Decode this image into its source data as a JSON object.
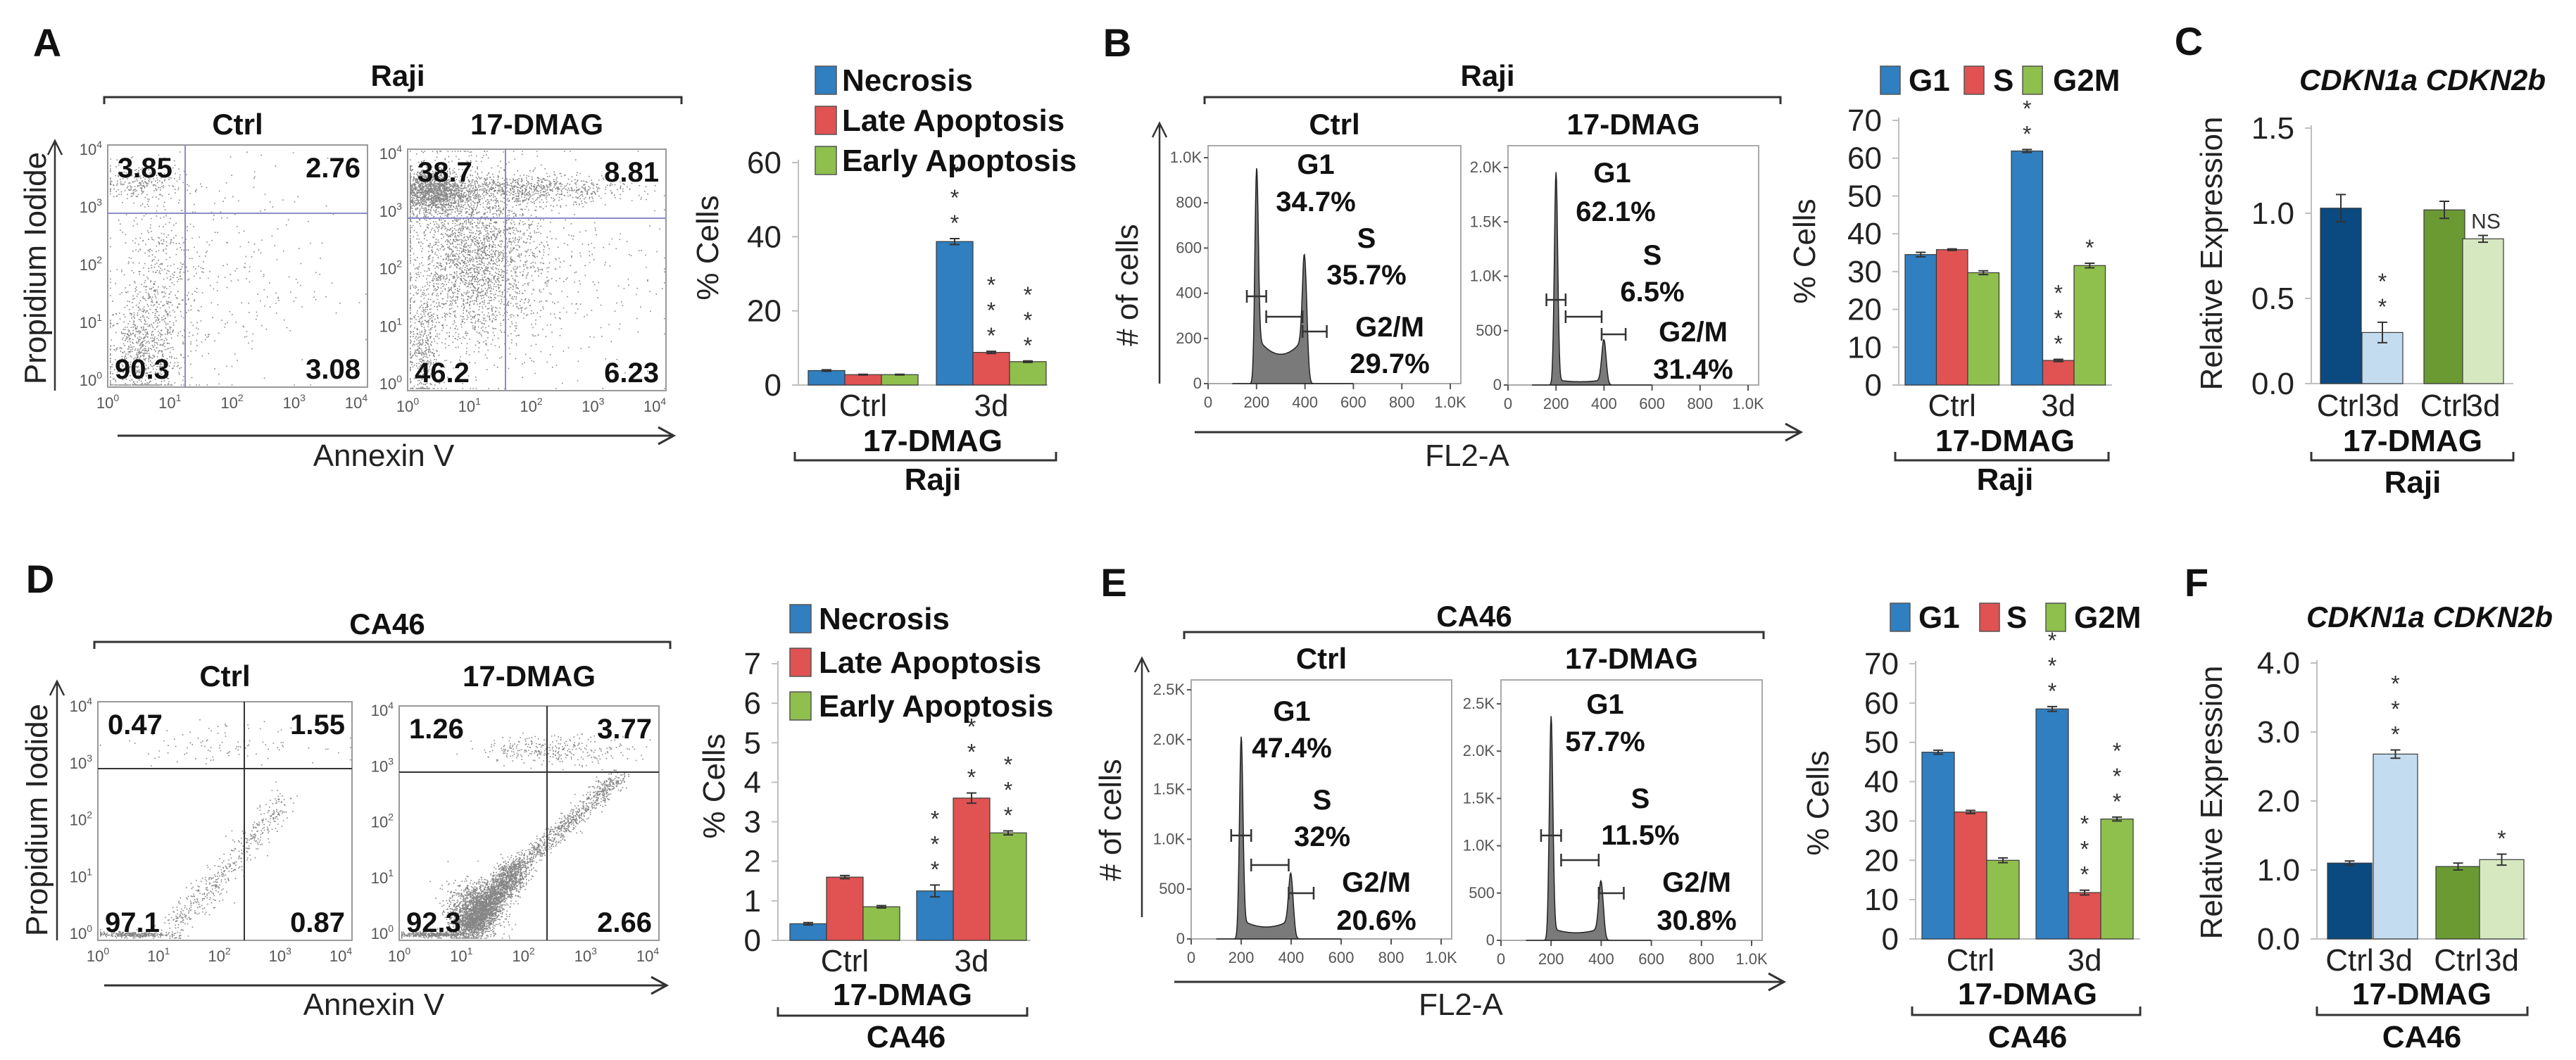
{
  "chart_data": [
    {
      "panel": "A",
      "type": "scatter",
      "title": "Raji",
      "xlabel": "Annexin V",
      "ylabel": "Propidium Iodide",
      "tick_base": "10",
      "tick_exponents": [
        "0",
        "1",
        "2",
        "3",
        "4"
      ],
      "subplots": [
        {
          "title": "Ctrl",
          "quadrants": {
            "upper_left": "3.85",
            "upper_right": "2.76",
            "lower_left": "90.3",
            "lower_right": "3.08"
          }
        },
        {
          "title": "17-DMAG",
          "quadrants": {
            "upper_left": "38.7",
            "upper_right": "8.81",
            "lower_left": "46.2",
            "lower_right": "6.23"
          }
        }
      ]
    },
    {
      "panel": "A-bar",
      "type": "bar",
      "categories": [
        "Ctrl",
        "3d"
      ],
      "group_label": "17-DMAG",
      "cell_line": "Raji",
      "ylabel": "% Cells",
      "ylim": [
        0,
        60
      ],
      "yticks": [
        "0",
        "20",
        "40",
        "60"
      ],
      "series": [
        {
          "name": "Necrosis",
          "color": "#2f7fc1",
          "values": [
            3.9,
            38.7
          ],
          "errors": [
            0.2,
            0.8
          ],
          "significance": [
            "",
            "***"
          ]
        },
        {
          "name": "Late Apoptosis",
          "color": "#e15252",
          "values": [
            2.8,
            8.8
          ],
          "errors": [
            0.1,
            0.3
          ],
          "significance": [
            "",
            "***"
          ]
        },
        {
          "name": "Early Apoptosis",
          "color": "#8fbf4d",
          "values": [
            2.8,
            6.3
          ],
          "errors": [
            0.1,
            0.2
          ],
          "significance": [
            "",
            "***"
          ]
        }
      ]
    },
    {
      "panel": "B",
      "type": "area",
      "title": "Raji",
      "xlabel": "FL2-A",
      "ylabel": "# of cells",
      "x_ticks": [
        {
          "value": 0,
          "label": "0"
        },
        {
          "value": 200,
          "label": "200"
        },
        {
          "value": 400,
          "label": "400"
        },
        {
          "value": 600,
          "label": "600"
        },
        {
          "value": 800,
          "label": "800"
        },
        {
          "value": 1000,
          "label": "1.0K"
        }
      ],
      "subplots": [
        {
          "title": "Ctrl",
          "y_ticks": [
            {
              "value": 0,
              "label": "0"
            },
            {
              "value": 200,
              "label": "200"
            },
            {
              "value": 400,
              "label": "400"
            },
            {
              "value": 600,
              "label": "600"
            },
            {
              "value": 800,
              "label": "800"
            },
            {
              "value": 1000,
              "label": "1.0K"
            }
          ],
          "g1_peak_count": 920,
          "s_phase_count": 130,
          "g2_peak_count": 480,
          "phases": [
            {
              "name": "G1",
              "percent": "34.7%"
            },
            {
              "name": "S",
              "percent": "35.7%"
            },
            {
              "name": "G2/M",
              "percent": "29.7%"
            }
          ]
        },
        {
          "title": "17-DMAG",
          "y_ticks": [
            {
              "value": 0,
              "label": "0"
            },
            {
              "value": 500,
              "label": "500"
            },
            {
              "value": 1000,
              "label": "1.0K"
            },
            {
              "value": 1500,
              "label": "1.5K"
            },
            {
              "value": 2000,
              "label": "2.0K"
            }
          ],
          "g1_peak_count": 1950,
          "s_phase_count": 30,
          "g2_peak_count": 400,
          "phases": [
            {
              "name": "G1",
              "percent": "62.1%"
            },
            {
              "name": "S",
              "percent": "6.5%"
            },
            {
              "name": "G2/M",
              "percent": "31.4%"
            }
          ]
        }
      ]
    },
    {
      "panel": "B-bar",
      "type": "bar",
      "categories": [
        "Ctrl",
        "3d"
      ],
      "group_label": "17-DMAG",
      "cell_line": "Raji",
      "ylabel": "% Cells",
      "ylim": [
        0,
        70
      ],
      "yticks": [
        "0",
        "10",
        "20",
        "30",
        "40",
        "50",
        "60",
        "70"
      ],
      "series": [
        {
          "name": "G1",
          "color": "#2f7fc1",
          "values": [
            34.5,
            61.9
          ],
          "errors": [
            0.6,
            0.4
          ],
          "significance": [
            "",
            "***"
          ]
        },
        {
          "name": "S",
          "color": "#e15252",
          "values": [
            35.8,
            6.5
          ],
          "errors": [
            0.2,
            0.3
          ],
          "significance": [
            "",
            "***"
          ]
        },
        {
          "name": "G2M",
          "color": "#8fbf4d",
          "values": [
            29.7,
            31.6
          ],
          "errors": [
            0.5,
            0.6
          ],
          "significance": [
            "",
            "*"
          ]
        }
      ]
    },
    {
      "panel": "C",
      "type": "bar",
      "title": "CDKN1a CDKN2b",
      "categories": [
        "Ctrl",
        "3d",
        "Ctrl",
        "3d"
      ],
      "values": [
        1.03,
        0.3,
        1.02,
        0.85
      ],
      "errors": [
        0.08,
        0.06,
        0.05,
        0.02
      ],
      "colors": [
        "#0b4a80",
        "#c4dcf0",
        "#6b9a33",
        "#d6e8c0"
      ],
      "significance": [
        "",
        "**",
        "",
        "NS"
      ],
      "group_label": "17-DMAG",
      "cell_line": "Raji",
      "ylabel": "Relative Expression",
      "ylim": [
        0,
        1.5
      ],
      "yticks": [
        "0.0",
        "0.5",
        "1.0",
        "1.5"
      ]
    },
    {
      "panel": "D",
      "type": "scatter",
      "title": "CA46",
      "xlabel": "Annexin V",
      "ylabel": "Propidium Iodide",
      "tick_base": "10",
      "tick_exponents": [
        "0",
        "1",
        "2",
        "3",
        "4"
      ],
      "subplots": [
        {
          "title": "Ctrl",
          "quadrants": {
            "upper_left": "0.47",
            "upper_right": "1.55",
            "lower_left": "97.1",
            "lower_right": "0.87"
          }
        },
        {
          "title": "17-DMAG",
          "quadrants": {
            "upper_left": "1.26",
            "upper_right": "3.77",
            "lower_left": "92.3",
            "lower_right": "2.66"
          }
        }
      ]
    },
    {
      "panel": "D-bar",
      "type": "bar",
      "categories": [
        "Ctrl",
        "3d"
      ],
      "group_label": "17-DMAG",
      "cell_line": "CA46",
      "ylabel": "% Cells",
      "ylim": [
        0,
        7
      ],
      "yticks": [
        "0",
        "1",
        "2",
        "3",
        "4",
        "5",
        "6",
        "7"
      ],
      "series": [
        {
          "name": "Necrosis",
          "color": "#2f7fc1",
          "values": [
            0.42,
            1.25
          ],
          "errors": [
            0.03,
            0.15
          ],
          "significance": [
            "",
            "***"
          ]
        },
        {
          "name": "Late Apoptosis",
          "color": "#e15252",
          "values": [
            1.6,
            3.6
          ],
          "errors": [
            0.04,
            0.13
          ],
          "significance": [
            "",
            "***"
          ]
        },
        {
          "name": "Early Apoptosis",
          "color": "#8fbf4d",
          "values": [
            0.85,
            2.72
          ],
          "errors": [
            0.03,
            0.05
          ],
          "significance": [
            "",
            "***"
          ]
        }
      ]
    },
    {
      "panel": "E",
      "type": "area",
      "title": "CA46",
      "xlabel": "FL2-A",
      "ylabel": "# of cells",
      "x_ticks": [
        {
          "value": 0,
          "label": "0"
        },
        {
          "value": 200,
          "label": "200"
        },
        {
          "value": 400,
          "label": "400"
        },
        {
          "value": 600,
          "label": "600"
        },
        {
          "value": 800,
          "label": "800"
        },
        {
          "value": 1000,
          "label": "1.0K"
        }
      ],
      "subplots": [
        {
          "title": "Ctrl",
          "y_ticks": [
            {
              "value": 0,
              "label": "0"
            },
            {
              "value": 500,
              "label": "500"
            },
            {
              "value": 1000,
              "label": "1.0K"
            },
            {
              "value": 1500,
              "label": "1.5K"
            },
            {
              "value": 2000,
              "label": "2.0K"
            },
            {
              "value": 2500,
              "label": "2.5K"
            }
          ],
          "g1_peak_count": 2000,
          "s_phase_count": 120,
          "g2_peak_count": 580,
          "phases": [
            {
              "name": "G1",
              "percent": "47.4%"
            },
            {
              "name": "S",
              "percent": "32%"
            },
            {
              "name": "G2/M",
              "percent": "20.6%"
            }
          ]
        },
        {
          "title": "17-DMAG",
          "y_ticks": [
            {
              "value": 0,
              "label": "0"
            },
            {
              "value": 500,
              "label": "500"
            },
            {
              "value": 1000,
              "label": "1.0K"
            },
            {
              "value": 1500,
              "label": "1.5K"
            },
            {
              "value": 2000,
              "label": "2.0K"
            },
            {
              "value": 2500,
              "label": "2.5K"
            }
          ],
          "g1_peak_count": 2350,
          "s_phase_count": 80,
          "g2_peak_count": 580,
          "phases": [
            {
              "name": "G1",
              "percent": "57.7%"
            },
            {
              "name": "S",
              "percent": "11.5%"
            },
            {
              "name": "G2/M",
              "percent": "30.8%"
            }
          ]
        }
      ]
    },
    {
      "panel": "E-bar",
      "type": "bar",
      "categories": [
        "Ctrl",
        "3d"
      ],
      "group_label": "17-DMAG",
      "cell_line": "CA46",
      "ylabel": "% Cells",
      "ylim": [
        0,
        70
      ],
      "yticks": [
        "0",
        "10",
        "20",
        "30",
        "40",
        "50",
        "60",
        "70"
      ],
      "series": [
        {
          "name": "G1",
          "color": "#2f7fc1",
          "values": [
            47.5,
            58.5
          ],
          "errors": [
            0.5,
            0.6
          ],
          "significance": [
            "",
            "***"
          ]
        },
        {
          "name": "S",
          "color": "#e15252",
          "values": [
            32.3,
            11.8
          ],
          "errors": [
            0.4,
            0.6
          ],
          "significance": [
            "",
            "***"
          ]
        },
        {
          "name": "G2M",
          "color": "#8fbf4d",
          "values": [
            20.0,
            30.5
          ],
          "errors": [
            0.6,
            0.5
          ],
          "significance": [
            "",
            "***"
          ]
        }
      ]
    },
    {
      "panel": "F",
      "type": "bar",
      "title": "CDKN1a CDKN2b",
      "categories": [
        "Ctrl",
        "3d",
        "Ctrl",
        "3d"
      ],
      "values": [
        1.1,
        2.68,
        1.05,
        1.15
      ],
      "errors": [
        0.03,
        0.06,
        0.05,
        0.08
      ],
      "colors": [
        "#0b4a80",
        "#c4dcf0",
        "#6b9a33",
        "#d6e8c0"
      ],
      "significance": [
        "",
        "***",
        "",
        "*"
      ],
      "group_label": "17-DMAG",
      "cell_line": "CA46",
      "ylabel": "Relative Expression",
      "ylim": [
        0,
        4.0
      ],
      "yticks": [
        "0.0",
        "1.0",
        "2.0",
        "3.0",
        "4.0"
      ]
    }
  ],
  "panel_letters": [
    "A",
    "B",
    "C",
    "D",
    "E",
    "F"
  ]
}
